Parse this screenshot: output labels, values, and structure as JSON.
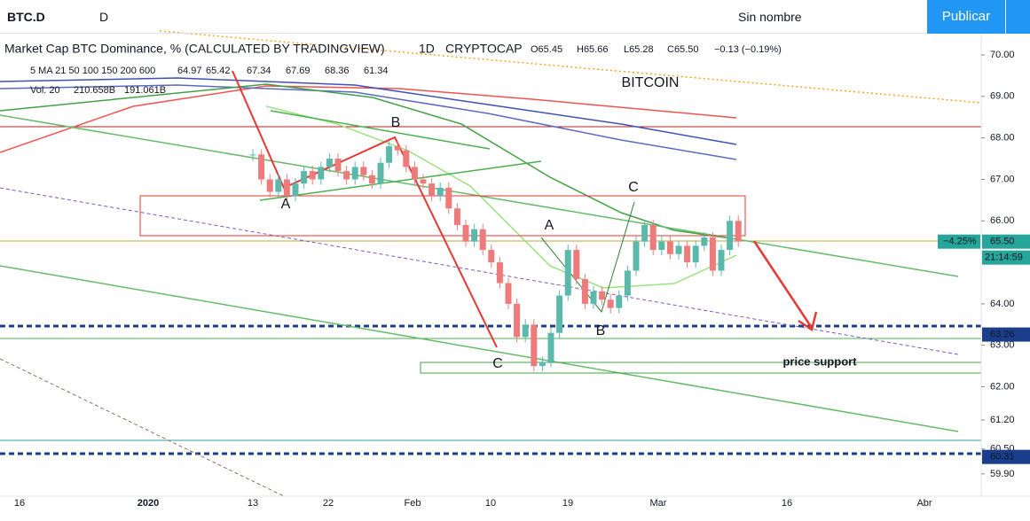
{
  "toolbar": {
    "symbol": "BTC.D",
    "interval": "D",
    "layout_name": "Sin nombre",
    "publish": "Publicar"
  },
  "legend": {
    "title": "Market Cap BTC Dominance, % (CALCULATED BY TRADINGVIEW)",
    "resolution": "1D",
    "exchange": "CRYPTOCAP",
    "ohlc": [
      "O65.45",
      "H65.66",
      "L65.28",
      "C65.50",
      "−0.13 (−0.19%)"
    ],
    "ma_label": "5 MA 21 50 100 150 200 600",
    "ma_values": [
      "64.97",
      "65.42",
      "67.34",
      "67.69",
      "68.36",
      "61.34"
    ],
    "vol_label": "Vol. 20",
    "vol_values": [
      "210.658B",
      "191.061B"
    ]
  },
  "chart_data": {
    "type": "candlestick",
    "closes": [
      67.6,
      67.0,
      66.7,
      67.0,
      66.6,
      66.9,
      67.2,
      67.0,
      67.3,
      67.5,
      67.2,
      67.0,
      67.3,
      67.1,
      66.9,
      67.4,
      67.8,
      67.7,
      67.3,
      67.0,
      66.9,
      66.6,
      66.8,
      66.3,
      65.9,
      65.5,
      65.8,
      65.3,
      65.0,
      64.5,
      64.0,
      63.2,
      63.5,
      62.5,
      62.6,
      63.3,
      64.2,
      65.3,
      64.6,
      64.0,
      64.3,
      64.1,
      63.9,
      64.2,
      64.8,
      65.5,
      65.9,
      65.3,
      65.5,
      65.2,
      65.4,
      65.0,
      65.4,
      65.6,
      64.8,
      65.3,
      66.0,
      65.5
    ],
    "up_color": "#5cb8ab",
    "down_color": "#ee7b7b",
    "ylim": [
      59.47,
      70.47
    ],
    "yticks": [
      {
        "value": 70,
        "label": "70.00"
      },
      {
        "value": 69,
        "label": "69.00"
      },
      {
        "value": 68,
        "label": "68.00"
      },
      {
        "value": 67,
        "label": "67.00"
      },
      {
        "value": 66,
        "label": "66.00"
      },
      {
        "value": 64,
        "label": "64.00"
      },
      {
        "value": 63,
        "label": "63.00"
      },
      {
        "value": 62,
        "label": "62.00"
      },
      {
        "value": 61.2,
        "label": "61.20"
      },
      {
        "value": 60.5,
        "label": "60.50"
      },
      {
        "value": 59.9,
        "label": "59.90"
      }
    ],
    "price_tags": [
      {
        "value": 65.5,
        "label": "65.50"
      },
      {
        "value": 63.26,
        "label": "63.26"
      },
      {
        "value": 60.31,
        "label": "60.31"
      }
    ],
    "change_tag": "−4.25%",
    "countdown": "21:14:59",
    "x_labels": [
      "16",
      "2020",
      "13",
      "22",
      "Feb",
      "10",
      "19",
      "Mar",
      "16",
      "Abr"
    ],
    "annotations": [
      "BITCOIN",
      "A",
      "B",
      "C",
      "A",
      "B",
      "C",
      "price support"
    ]
  }
}
